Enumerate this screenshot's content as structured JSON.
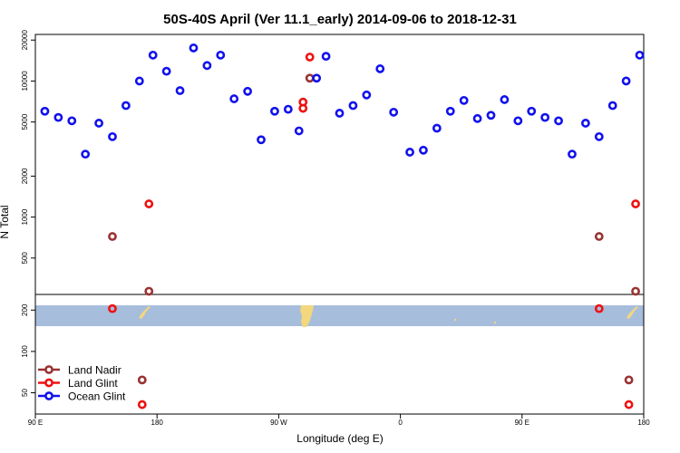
{
  "chart_data": {
    "type": "scatter",
    "title": "50S-40S April (Ver 11.1_early)   2014-09-06 to 2018-12-31",
    "xlabel": "Longitude (deg E)",
    "ylabel": "N Total",
    "y_scale": "log",
    "upper_panel": {
      "ylim": [
        270,
        22000
      ],
      "y_ticks": [
        {
          "value": 500,
          "label": "500"
        },
        {
          "value": 1000,
          "label": "1000"
        },
        {
          "value": 2000,
          "label": "2000"
        },
        {
          "value": 5000,
          "label": "5000"
        },
        {
          "value": 10000,
          "label": "10000"
        },
        {
          "value": 20000,
          "label": "20000"
        }
      ]
    },
    "lower_panel": {
      "ylim": [
        35,
        260
      ],
      "y_ticks": [
        {
          "value": 50,
          "label": "50"
        },
        {
          "value": 100,
          "label": "100"
        },
        {
          "value": 200,
          "label": "200"
        }
      ],
      "map_band_lat": [
        -50,
        -40
      ]
    },
    "x_ticks": [
      {
        "value": 0,
        "label": "90 E"
      },
      {
        "value": 90,
        "label": "180"
      },
      {
        "value": 180,
        "label": "90 W"
      },
      {
        "value": 270,
        "label": "0"
      },
      {
        "value": 360,
        "label": "90 E"
      },
      {
        "value": 450,
        "label": "180"
      }
    ],
    "xlim": [
      0,
      450
    ],
    "legend_position": "bottom-left",
    "series": [
      {
        "name": "Land Nadir",
        "color": "#993333",
        "points": [
          {
            "x": 57,
            "y": 720
          },
          {
            "x": 84,
            "y": 285
          },
          {
            "x": 79,
            "y": 62
          },
          {
            "x": 203,
            "y": 10500
          },
          {
            "x": 417,
            "y": 720
          },
          {
            "x": 444,
            "y": 285
          },
          {
            "x": 439,
            "y": 62
          }
        ]
      },
      {
        "name": "Land Glint",
        "color": "#ee1111",
        "points": [
          {
            "x": 57,
            "y": 205
          },
          {
            "x": 84,
            "y": 1250
          },
          {
            "x": 79,
            "y": 41
          },
          {
            "x": 198,
            "y": 6300
          },
          {
            "x": 198,
            "y": 7000
          },
          {
            "x": 203,
            "y": 15000
          },
          {
            "x": 417,
            "y": 205
          },
          {
            "x": 444,
            "y": 1250
          },
          {
            "x": 439,
            "y": 41
          }
        ]
      },
      {
        "name": "Ocean Glint",
        "color": "#1111ee",
        "points": [
          {
            "x": 7,
            "y": 6000
          },
          {
            "x": 17,
            "y": 5400
          },
          {
            "x": 27,
            "y": 5100
          },
          {
            "x": 37,
            "y": 2900
          },
          {
            "x": 47,
            "y": 4900
          },
          {
            "x": 57,
            "y": 3900
          },
          {
            "x": 67,
            "y": 6600
          },
          {
            "x": 77,
            "y": 10000
          },
          {
            "x": 87,
            "y": 15500
          },
          {
            "x": 97,
            "y": 11800
          },
          {
            "x": 107,
            "y": 8500
          },
          {
            "x": 117,
            "y": 17500
          },
          {
            "x": 127,
            "y": 13000
          },
          {
            "x": 137,
            "y": 15500
          },
          {
            "x": 147,
            "y": 7400
          },
          {
            "x": 157,
            "y": 8400
          },
          {
            "x": 167,
            "y": 3700
          },
          {
            "x": 177,
            "y": 6000
          },
          {
            "x": 187,
            "y": 6200
          },
          {
            "x": 195,
            "y": 4300
          },
          {
            "x": 208,
            "y": 10500
          },
          {
            "x": 215,
            "y": 15200
          },
          {
            "x": 225,
            "y": 5800
          },
          {
            "x": 235,
            "y": 6600
          },
          {
            "x": 245,
            "y": 7900
          },
          {
            "x": 255,
            "y": 12300
          },
          {
            "x": 265,
            "y": 5900
          },
          {
            "x": 277,
            "y": 3000
          },
          {
            "x": 287,
            "y": 3100
          },
          {
            "x": 297,
            "y": 4500
          },
          {
            "x": 307,
            "y": 6000
          },
          {
            "x": 317,
            "y": 7200
          },
          {
            "x": 327,
            "y": 5300
          },
          {
            "x": 337,
            "y": 5600
          },
          {
            "x": 347,
            "y": 7300
          },
          {
            "x": 357,
            "y": 5100
          },
          {
            "x": 367,
            "y": 6000
          },
          {
            "x": 377,
            "y": 5400
          },
          {
            "x": 387,
            "y": 5100
          },
          {
            "x": 397,
            "y": 2900
          },
          {
            "x": 407,
            "y": 4900
          },
          {
            "x": 417,
            "y": 3900
          },
          {
            "x": 427,
            "y": 6600
          },
          {
            "x": 437,
            "y": 10000
          },
          {
            "x": 447,
            "y": 15500
          }
        ]
      }
    ]
  }
}
